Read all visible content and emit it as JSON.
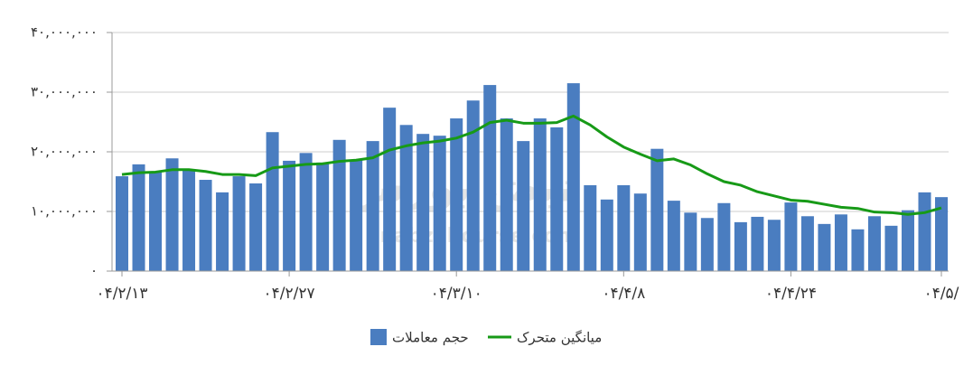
{
  "chart_data": {
    "type": "bar_line",
    "watermark": [
      "نبض بورس",
      "nabzebourse.com"
    ],
    "categories": [
      "۰۴/۲/۱۳",
      null,
      null,
      null,
      null,
      null,
      null,
      null,
      null,
      null,
      "۰۴/۲/۲۷",
      null,
      null,
      null,
      null,
      null,
      null,
      null,
      null,
      null,
      "۰۴/۳/۱۰",
      null,
      null,
      null,
      null,
      null,
      null,
      null,
      null,
      null,
      "۰۴/۴/۸",
      null,
      null,
      null,
      null,
      null,
      null,
      null,
      null,
      null,
      "۰۴/۴/۲۴",
      null,
      null,
      null,
      null,
      null,
      null,
      null,
      null,
      "۰۴/۵/"
    ],
    "series": [
      {
        "name": "حجم معاملات",
        "kind": "bar",
        "color": "#4a7dc0",
        "values": [
          15900000,
          17900000,
          16700000,
          18900000,
          17000000,
          15300000,
          13200000,
          15900000,
          14700000,
          23300000,
          18500000,
          19800000,
          18200000,
          22000000,
          18600000,
          21800000,
          27400000,
          24500000,
          23000000,
          22700000,
          25600000,
          28600000,
          31200000,
          25600000,
          21800000,
          25600000,
          24100000,
          31500000,
          14400000,
          12000000,
          14400000,
          13000000,
          20500000,
          11800000,
          9800000,
          8900000,
          11400000,
          8200000,
          9100000,
          8600000,
          11500000,
          9200000,
          7900000,
          9500000,
          7000000,
          9200000,
          7600000,
          10200000,
          13200000,
          12400000
        ]
      },
      {
        "name": "میانگین متحرک",
        "kind": "line",
        "color": "#179a17",
        "values": [
          16200000,
          16500000,
          16600000,
          17000000,
          17000000,
          16700000,
          16200000,
          16200000,
          16000000,
          17300000,
          17600000,
          17900000,
          18000000,
          18400000,
          18600000,
          19000000,
          20300000,
          21000000,
          21500000,
          21800000,
          22300000,
          23300000,
          24900000,
          25300000,
          24800000,
          24800000,
          24900000,
          26000000,
          24500000,
          22500000,
          20800000,
          19600000,
          18500000,
          18800000,
          17800000,
          16300000,
          15000000,
          14400000,
          13300000,
          12600000,
          11900000,
          11700000,
          11200000,
          10700000,
          10500000,
          9900000,
          9800000,
          9500000,
          9800000,
          10600000
        ]
      }
    ],
    "ylim": [
      0,
      40000000
    ],
    "yticks": [
      {
        "value": 0,
        "label": "۰"
      },
      {
        "value": 10000000,
        "label": "۱۰,۰۰۰,۰۰۰"
      },
      {
        "value": 20000000,
        "label": "۲۰,۰۰۰,۰۰۰"
      },
      {
        "value": 30000000,
        "label": "۳۰,۰۰۰,۰۰۰"
      },
      {
        "value": 40000000,
        "label": "۴۰,۰۰۰,۰۰۰"
      }
    ],
    "grid": true
  }
}
